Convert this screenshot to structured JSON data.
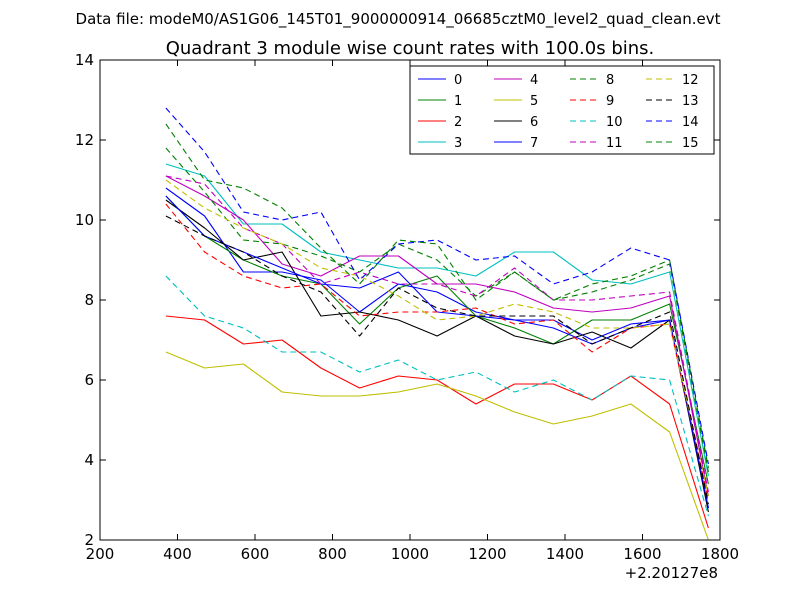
{
  "header": {
    "file_title": "Data file: modeM0/AS1G06_145T01_9000000914_06685cztM0_level2_quad_clean.evt"
  },
  "chart_data": {
    "type": "line",
    "title": "Quadrant 3 module wise count rates with 100.0s bins.",
    "xlabel": "",
    "ylabel": "",
    "x_offset_label": "+2.20127e8",
    "xlim": [
      200,
      1800
    ],
    "ylim": [
      2,
      14
    ],
    "x_ticks": [
      200,
      400,
      600,
      800,
      1000,
      1200,
      1400,
      1600,
      1800
    ],
    "y_ticks": [
      2,
      4,
      6,
      8,
      10,
      12,
      14
    ],
    "x": [
      370,
      470,
      570,
      670,
      770,
      870,
      970,
      1070,
      1170,
      1270,
      1370,
      1470,
      1570,
      1670,
      1770
    ],
    "legend_position": "top-right",
    "legend_columns": 4,
    "grid": false,
    "series": [
      {
        "name": "0",
        "color": "#0000ff",
        "dash": "solid",
        "values": [
          10.8,
          10.1,
          8.7,
          8.7,
          8.5,
          7.7,
          8.4,
          8.2,
          7.7,
          7.5,
          7.5,
          7.0,
          7.4,
          7.5,
          2.8
        ]
      },
      {
        "name": "1",
        "color": "#008000",
        "dash": "solid",
        "values": [
          10.6,
          9.6,
          9.0,
          8.6,
          8.4,
          7.4,
          8.3,
          8.6,
          7.6,
          7.3,
          6.9,
          7.5,
          7.5,
          7.9,
          3.4
        ]
      },
      {
        "name": "2",
        "color": "#ff0000",
        "dash": "solid",
        "values": [
          7.6,
          7.5,
          6.9,
          7.0,
          6.3,
          5.8,
          6.1,
          6.0,
          5.4,
          5.9,
          5.9,
          5.5,
          6.1,
          5.4,
          2.3
        ]
      },
      {
        "name": "3",
        "color": "#00bfbf",
        "dash": "solid",
        "values": [
          11.4,
          11.1,
          9.9,
          9.9,
          9.2,
          9.0,
          8.8,
          8.8,
          8.6,
          9.2,
          9.2,
          8.5,
          8.4,
          8.7,
          3.6
        ]
      },
      {
        "name": "4",
        "color": "#bf00bf",
        "dash": "solid",
        "values": [
          11.1,
          10.6,
          10.0,
          8.9,
          8.6,
          9.1,
          9.1,
          8.4,
          8.4,
          8.2,
          7.8,
          7.7,
          7.8,
          8.1,
          3.1
        ]
      },
      {
        "name": "5",
        "color": "#bfbf00",
        "dash": "solid",
        "values": [
          6.7,
          6.3,
          6.4,
          5.7,
          5.6,
          5.6,
          5.7,
          5.9,
          5.6,
          5.2,
          4.9,
          5.1,
          5.4,
          4.7,
          2.0
        ]
      },
      {
        "name": "6",
        "color": "#000000",
        "dash": "solid",
        "values": [
          10.5,
          9.8,
          9.0,
          9.2,
          7.6,
          7.7,
          7.5,
          7.1,
          7.6,
          7.1,
          6.9,
          7.2,
          6.8,
          7.5,
          2.7
        ]
      },
      {
        "name": "7",
        "color": "#0000ff",
        "dash": "solid",
        "values": [
          10.6,
          9.6,
          9.2,
          8.8,
          8.4,
          8.3,
          8.7,
          7.7,
          7.6,
          7.5,
          7.3,
          6.9,
          7.3,
          7.5,
          2.8
        ]
      },
      {
        "name": "8",
        "color": "#008000",
        "dash": "dashed",
        "values": [
          11.8,
          10.7,
          9.5,
          9.4,
          9.1,
          8.7,
          9.4,
          9.0,
          8.1,
          8.7,
          8.0,
          8.4,
          8.6,
          9.0,
          3.8
        ]
      },
      {
        "name": "9",
        "color": "#ff0000",
        "dash": "dashed",
        "values": [
          10.4,
          9.2,
          8.6,
          8.3,
          8.4,
          7.6,
          7.7,
          7.7,
          7.8,
          7.4,
          7.5,
          6.7,
          7.3,
          7.4,
          3.0
        ]
      },
      {
        "name": "10",
        "color": "#00bfbf",
        "dash": "dashed",
        "values": [
          8.6,
          7.6,
          7.3,
          6.7,
          6.7,
          6.2,
          6.5,
          6.0,
          6.2,
          5.7,
          6.0,
          5.5,
          6.1,
          6.0,
          2.6
        ]
      },
      {
        "name": "11",
        "color": "#bf00bf",
        "dash": "dashed",
        "values": [
          11.1,
          10.9,
          9.8,
          9.4,
          8.4,
          8.7,
          8.4,
          8.4,
          8.1,
          8.8,
          8.0,
          8.0,
          8.1,
          8.2,
          3.2
        ]
      },
      {
        "name": "12",
        "color": "#bfbf00",
        "dash": "dashed",
        "values": [
          11.0,
          10.3,
          9.8,
          9.4,
          8.8,
          8.6,
          8.1,
          7.5,
          7.6,
          7.9,
          7.7,
          7.3,
          7.3,
          7.4,
          3.1
        ]
      },
      {
        "name": "13",
        "color": "#000000",
        "dash": "dashed",
        "values": [
          10.1,
          9.6,
          9.2,
          8.6,
          8.2,
          7.1,
          8.3,
          7.8,
          7.6,
          7.6,
          7.6,
          6.9,
          7.3,
          7.7,
          2.9
        ]
      },
      {
        "name": "14",
        "color": "#0000ff",
        "dash": "dashed",
        "values": [
          12.8,
          11.7,
          10.2,
          10.0,
          10.2,
          8.5,
          9.4,
          9.5,
          9.0,
          9.1,
          8.4,
          8.7,
          9.3,
          9.0,
          3.9
        ]
      },
      {
        "name": "15",
        "color": "#008000",
        "dash": "dashed",
        "values": [
          12.4,
          11.0,
          10.8,
          10.3,
          9.3,
          8.4,
          9.5,
          9.4,
          8.0,
          8.7,
          8.0,
          8.2,
          8.5,
          8.9,
          3.7
        ]
      }
    ]
  }
}
